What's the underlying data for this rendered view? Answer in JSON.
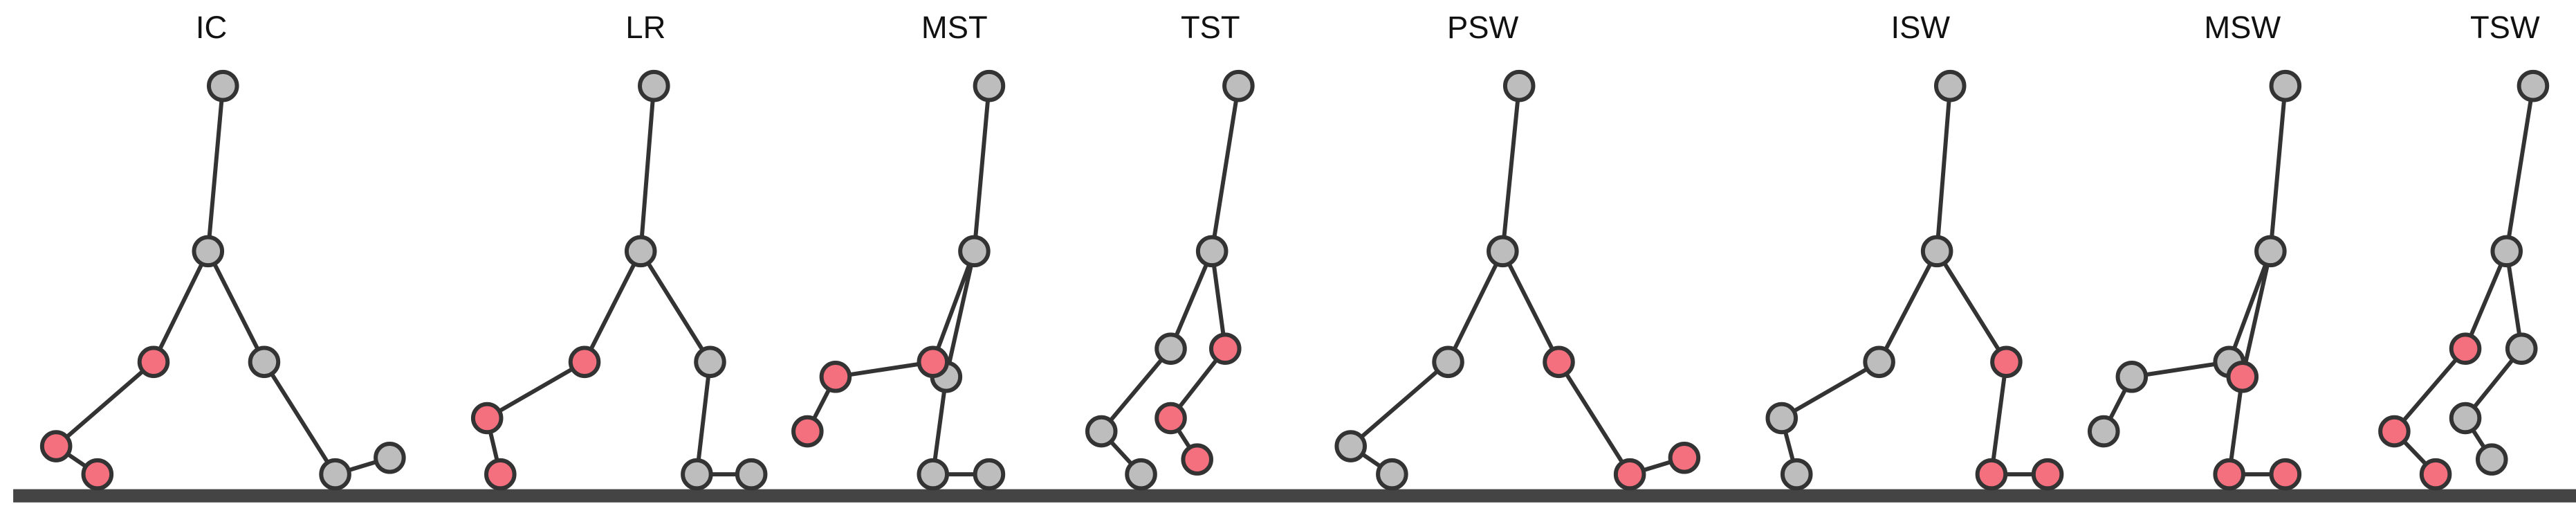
{
  "phases": [
    {
      "label": "IC"
    },
    {
      "label": "LR"
    },
    {
      "label": "MST"
    },
    {
      "label": "TST"
    },
    {
      "label": "PSW"
    },
    {
      "label": "ISW"
    },
    {
      "label": "MSW"
    },
    {
      "label": "TSW"
    }
  ]
}
